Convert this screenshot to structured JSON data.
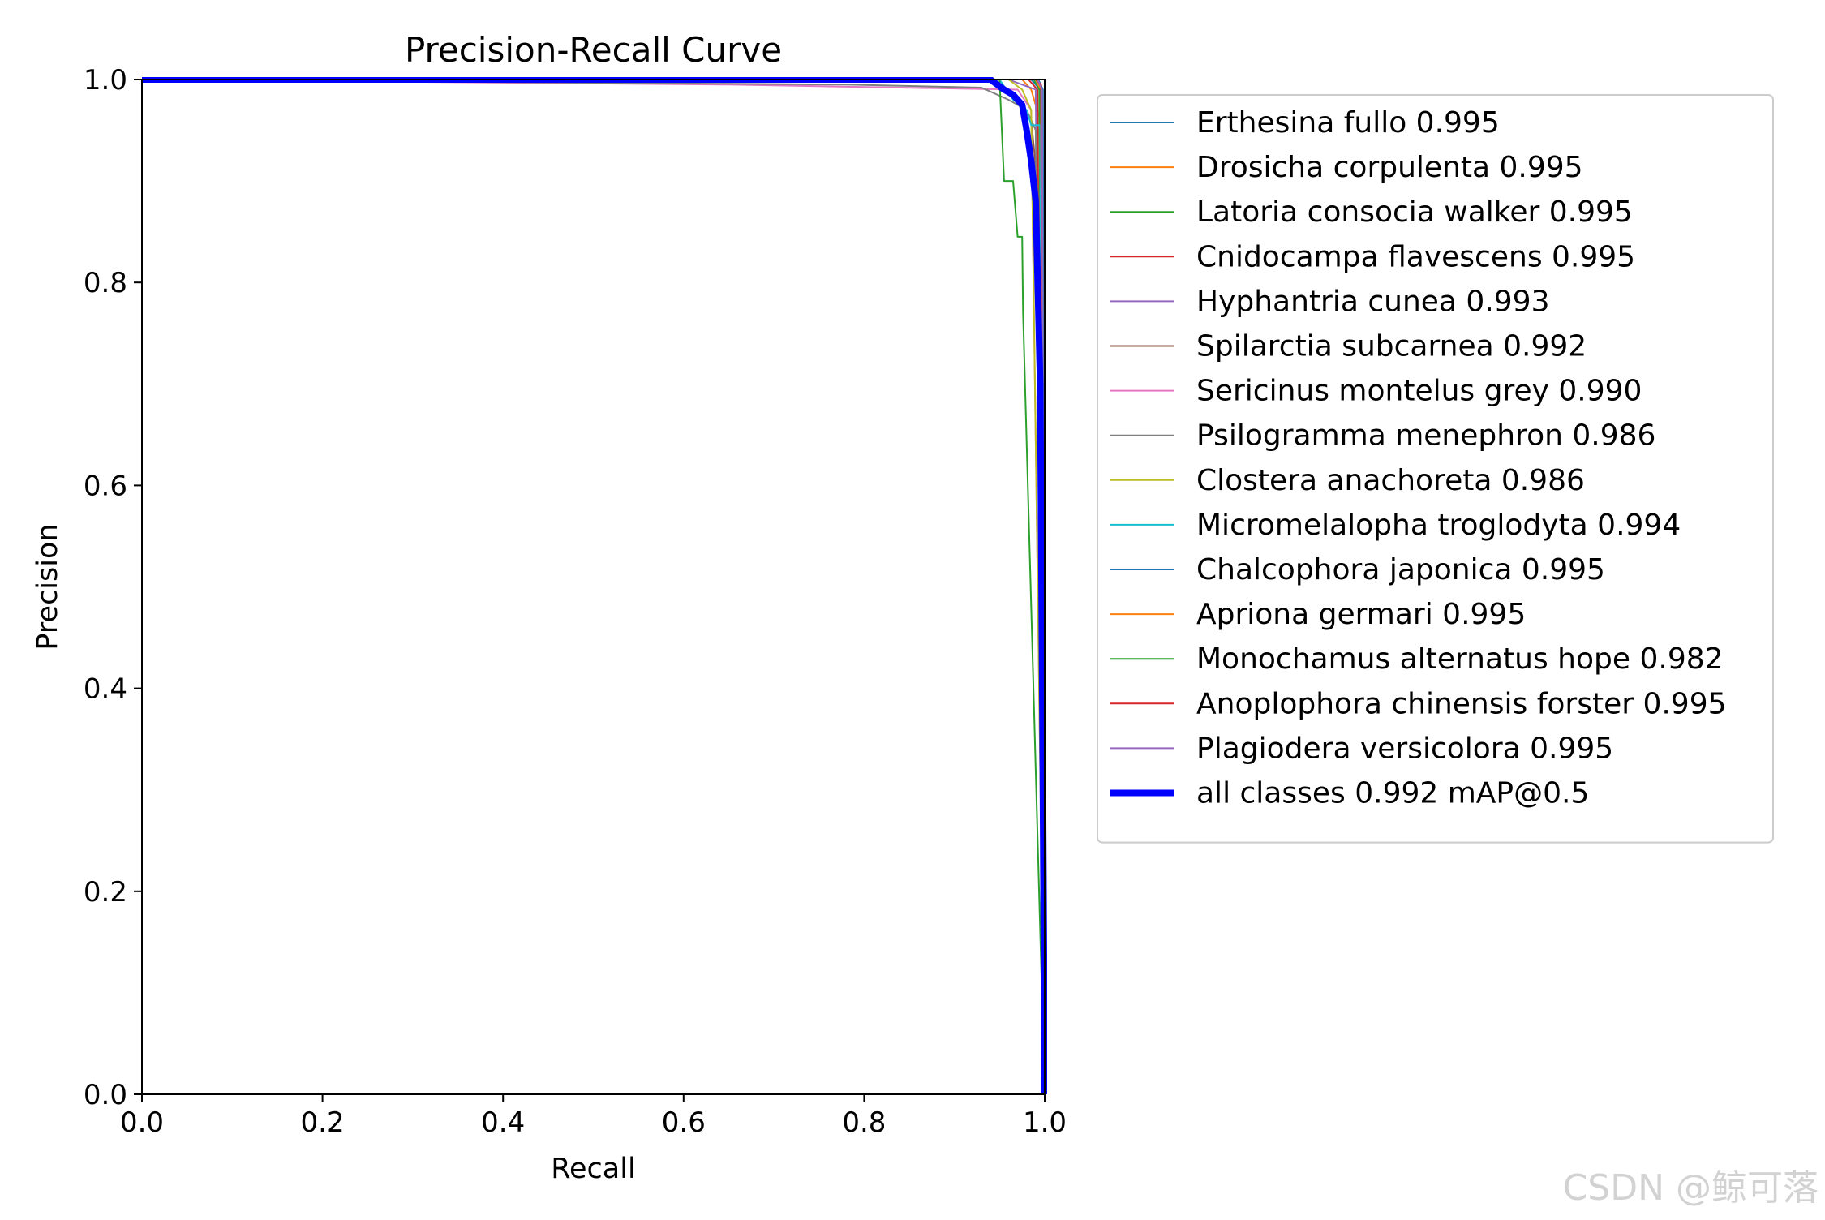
{
  "chart_data": {
    "type": "line",
    "title": "Precision-Recall Curve",
    "xlabel": "Recall",
    "ylabel": "Precision",
    "xlim": [
      0,
      1
    ],
    "ylim": [
      0,
      1
    ],
    "xticks": [
      "0.0",
      "0.2",
      "0.4",
      "0.6",
      "0.8",
      "1.0"
    ],
    "yticks": [
      "0.0",
      "0.2",
      "0.4",
      "0.6",
      "0.8",
      "1.0"
    ],
    "grid": false,
    "legend_position": "outside-right",
    "series": [
      {
        "name": "Erthesina fullo 0.995",
        "color": "#1f77b4",
        "x": [
          0,
          0.985,
          0.995,
          1.0
        ],
        "y": [
          1,
          1,
          0.99,
          0
        ]
      },
      {
        "name": "Drosicha corpulenta 0.995",
        "color": "#ff7f0e",
        "x": [
          0,
          0.975,
          0.985,
          0.995,
          1.0
        ],
        "y": [
          1,
          1,
          0.99,
          0.96,
          0
        ]
      },
      {
        "name": "Latoria consocia walker 0.995",
        "color": "#2ca02c",
        "x": [
          0,
          0.988,
          0.994,
          1.0
        ],
        "y": [
          1,
          1,
          0.99,
          0
        ]
      },
      {
        "name": "Cnidocampa flavescens 0.995",
        "color": "#d62728",
        "x": [
          0,
          0.982,
          0.992,
          1.0
        ],
        "y": [
          1,
          1,
          0.99,
          0
        ]
      },
      {
        "name": "Hyphantria cunea 0.993",
        "color": "#9467bd",
        "x": [
          0,
          0.96,
          0.975,
          0.99,
          1.0
        ],
        "y": [
          1,
          1,
          0.995,
          0.99,
          0
        ]
      },
      {
        "name": "Spilarctia subcarnea 0.992",
        "color": "#8c564b",
        "x": [
          0,
          0.94,
          0.955,
          0.97,
          0.985,
          0.995,
          1.0
        ],
        "y": [
          1,
          1,
          0.99,
          0.98,
          0.96,
          0.87,
          0
        ]
      },
      {
        "name": "Sericinus montelus grey 0.990",
        "color": "#e377c2",
        "x": [
          0,
          0.65,
          0.97,
          0.985,
          1.0
        ],
        "y": [
          1,
          0.995,
          0.99,
          0.97,
          0
        ]
      },
      {
        "name": "Psilogramma menephron 0.986",
        "color": "#7f7f7f",
        "x": [
          0,
          0.78,
          0.93,
          0.96,
          0.98,
          0.99,
          1.0
        ],
        "y": [
          1,
          0.995,
          0.992,
          0.98,
          0.97,
          0.95,
          0
        ]
      },
      {
        "name": "Clostera anachoreta 0.986",
        "color": "#bcbd22",
        "x": [
          0,
          0.96,
          0.975,
          0.985,
          1.0
        ],
        "y": [
          1,
          1,
          0.99,
          0.97,
          0
        ]
      },
      {
        "name": "Micromelalopha troglodyta 0.994",
        "color": "#17becf",
        "x": [
          0,
          0.95,
          0.965,
          0.98,
          0.985,
          0.995,
          1.0
        ],
        "y": [
          1,
          1,
          0.98,
          0.97,
          0.955,
          0.955,
          0
        ]
      },
      {
        "name": "Chalcophora japonica 0.995",
        "color": "#1f77b4",
        "x": [
          0,
          0.993,
          0.998,
          1.0
        ],
        "y": [
          1,
          1,
          0.99,
          0
        ]
      },
      {
        "name": "Apriona germari 0.995",
        "color": "#ff7f0e",
        "x": [
          0,
          0.99,
          0.996,
          1.0
        ],
        "y": [
          1,
          1,
          0.99,
          0
        ]
      },
      {
        "name": "Monochamus alternatus hope 0.982",
        "color": "#2ca02c",
        "x": [
          0,
          0.95,
          0.955,
          0.965,
          0.97,
          0.975,
          0.976,
          1.0
        ],
        "y": [
          1,
          1,
          0.9,
          0.9,
          0.845,
          0.845,
          0.77,
          0
        ]
      },
      {
        "name": "Anoplophora chinensis forster 0.995",
        "color": "#d62728",
        "x": [
          0,
          0.99,
          0.996,
          1.0
        ],
        "y": [
          1,
          1,
          0.995,
          0
        ]
      },
      {
        "name": "Plagiodera versicolora 0.995",
        "color": "#9467bd",
        "x": [
          0,
          0.992,
          0.997,
          1.0
        ],
        "y": [
          1,
          1,
          0.99,
          0
        ]
      },
      {
        "name": "all classes 0.992 mAP@0.5",
        "color": "#0000ff",
        "bold": true,
        "x": [
          0,
          0.94,
          0.955,
          0.965,
          0.975,
          0.98,
          0.985,
          0.99,
          0.995,
          0.998,
          1.0
        ],
        "y": [
          1,
          1,
          0.99,
          0.985,
          0.975,
          0.95,
          0.92,
          0.88,
          0.7,
          0.3,
          0
        ]
      }
    ]
  },
  "watermark": "CSDN @鲸可落"
}
